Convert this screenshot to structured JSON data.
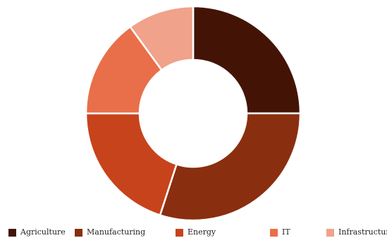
{
  "chart_data": {
    "type": "pie",
    "variant": "donut",
    "title": "",
    "categories": [
      "Agriculture",
      "Manufacturing",
      "Energy",
      "IT",
      "Infrastructure"
    ],
    "values": [
      25,
      30,
      20,
      15,
      10
    ],
    "colors": [
      "#431405",
      "#8a2e10",
      "#c7431b",
      "#e86f4a",
      "#f0a28a"
    ],
    "legend_position": "bottom"
  }
}
